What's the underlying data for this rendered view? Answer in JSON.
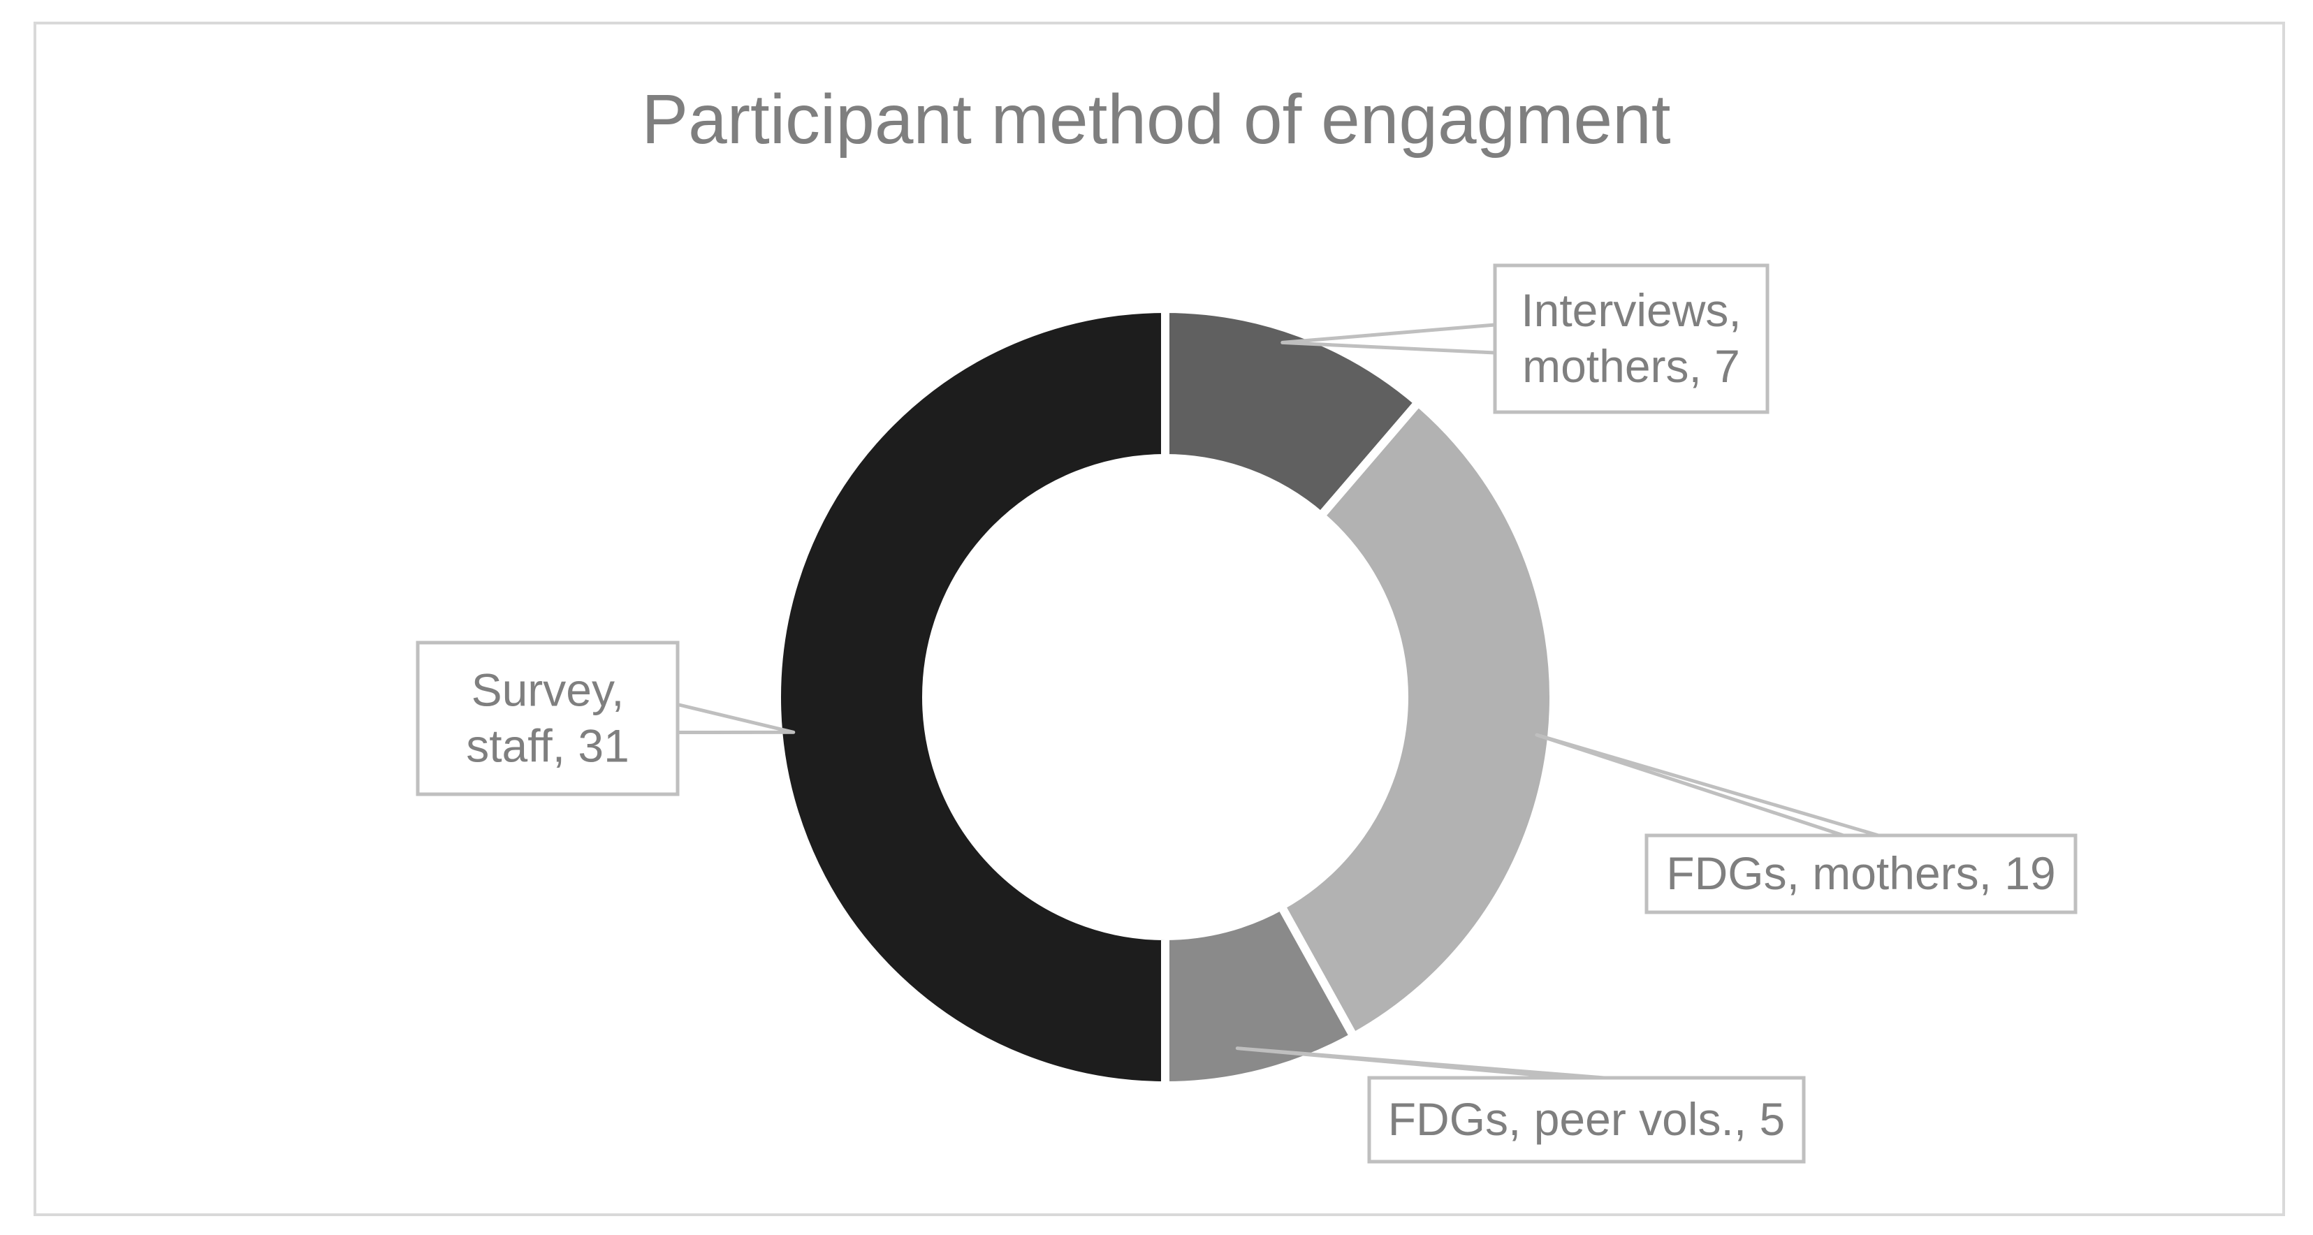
{
  "chart_data": {
    "type": "pie",
    "donut": true,
    "title": "Participant method of engagment",
    "slices": [
      {
        "label": "Interviews, mothers",
        "value": 7,
        "color": "#606060",
        "text_lines": [
          "Interviews,",
          "mothers, 7"
        ]
      },
      {
        "label": "FDGs, mothers",
        "value": 19,
        "color": "#b2b2b2",
        "text_lines": [
          "FDGs, mothers, 19"
        ]
      },
      {
        "label": "FDGs, peer vols.",
        "value": 5,
        "color": "#8a8a8a",
        "text_lines": [
          "FDGs, peer vols., 5"
        ]
      },
      {
        "label": "Survey, staff",
        "value": 31,
        "color": "#1d1d1d",
        "text_lines": [
          "Survey,",
          "staff, 31"
        ]
      }
    ]
  }
}
